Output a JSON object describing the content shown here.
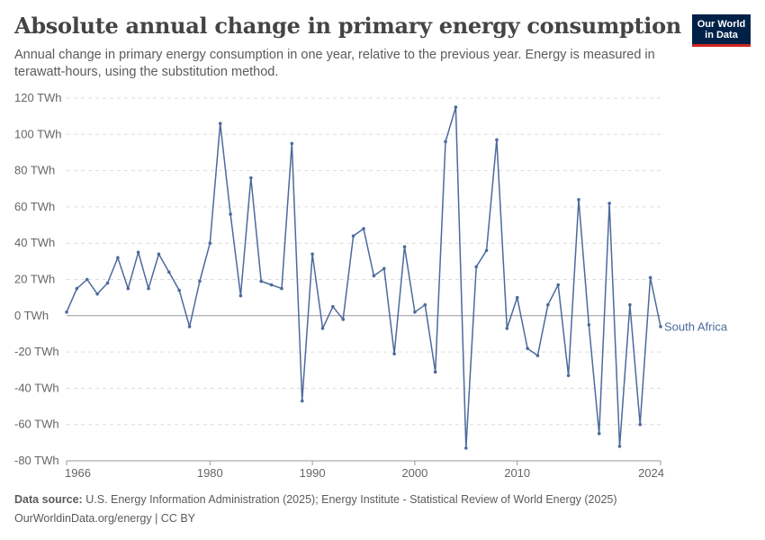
{
  "header": {
    "title": "Absolute annual change in primary energy consumption",
    "subtitle": "Annual change in primary energy consumption in one year, relative to the previous year. Energy is measured in terawatt-hours, using the substitution method.",
    "logo_line1": "Our World",
    "logo_line2": "in Data"
  },
  "footer": {
    "source_label": "Data source:",
    "source_text": "U.S. Energy Information Administration (2025); Energy Institute - Statistical Review of World Energy (2025)",
    "url_text": "OurWorldinData.org/energy | CC BY"
  },
  "colors": {
    "series": "#4c6a9c",
    "grid": "#dddddd",
    "zero": "#9a9a9a"
  },
  "chart_data": {
    "type": "line",
    "title": "Absolute annual change in primary energy consumption",
    "ylim": [
      -80,
      120
    ],
    "xlim": [
      1966,
      2024
    ],
    "yticks": [
      -80,
      -60,
      -40,
      -20,
      0,
      20,
      40,
      60,
      80,
      100,
      120
    ],
    "ytick_labels": [
      "-80 TWh",
      "-60 TWh",
      "-40 TWh",
      "-20 TWh",
      "0 TWh",
      "20 TWh",
      "40 TWh",
      "60 TWh",
      "80 TWh",
      "100 TWh",
      "120 TWh"
    ],
    "xticks": [
      1966,
      1980,
      1990,
      2000,
      2010,
      2024
    ],
    "xtick_labels": [
      "1966",
      "1980",
      "1990",
      "2000",
      "2010",
      "2024"
    ],
    "grid": "horizontal dashed",
    "series": [
      {
        "name": "South Africa",
        "x": [
          1966,
          1967,
          1968,
          1969,
          1970,
          1971,
          1972,
          1973,
          1974,
          1975,
          1976,
          1977,
          1978,
          1979,
          1980,
          1981,
          1982,
          1983,
          1984,
          1985,
          1986,
          1987,
          1988,
          1989,
          1990,
          1991,
          1992,
          1993,
          1994,
          1995,
          1996,
          1997,
          1998,
          1999,
          2000,
          2001,
          2002,
          2003,
          2004,
          2005,
          2006,
          2007,
          2008,
          2009,
          2010,
          2011,
          2012,
          2013,
          2014,
          2015,
          2016,
          2017,
          2018,
          2019,
          2020,
          2021,
          2022,
          2023,
          2024
        ],
        "values": [
          2,
          15,
          20,
          12,
          18,
          32,
          15,
          35,
          15,
          34,
          24,
          14,
          -6,
          19,
          40,
          106,
          56,
          11,
          76,
          19,
          17,
          15,
          95,
          -47,
          34,
          -7,
          5,
          -2,
          44,
          48,
          22,
          26,
          -21,
          38,
          2,
          6,
          -31,
          96,
          115,
          -73,
          27,
          36,
          97,
          -7,
          10,
          -18,
          -22,
          6,
          17,
          -33,
          64,
          -5,
          -65,
          62,
          -72,
          6,
          -60,
          21,
          -6
        ]
      }
    ]
  }
}
